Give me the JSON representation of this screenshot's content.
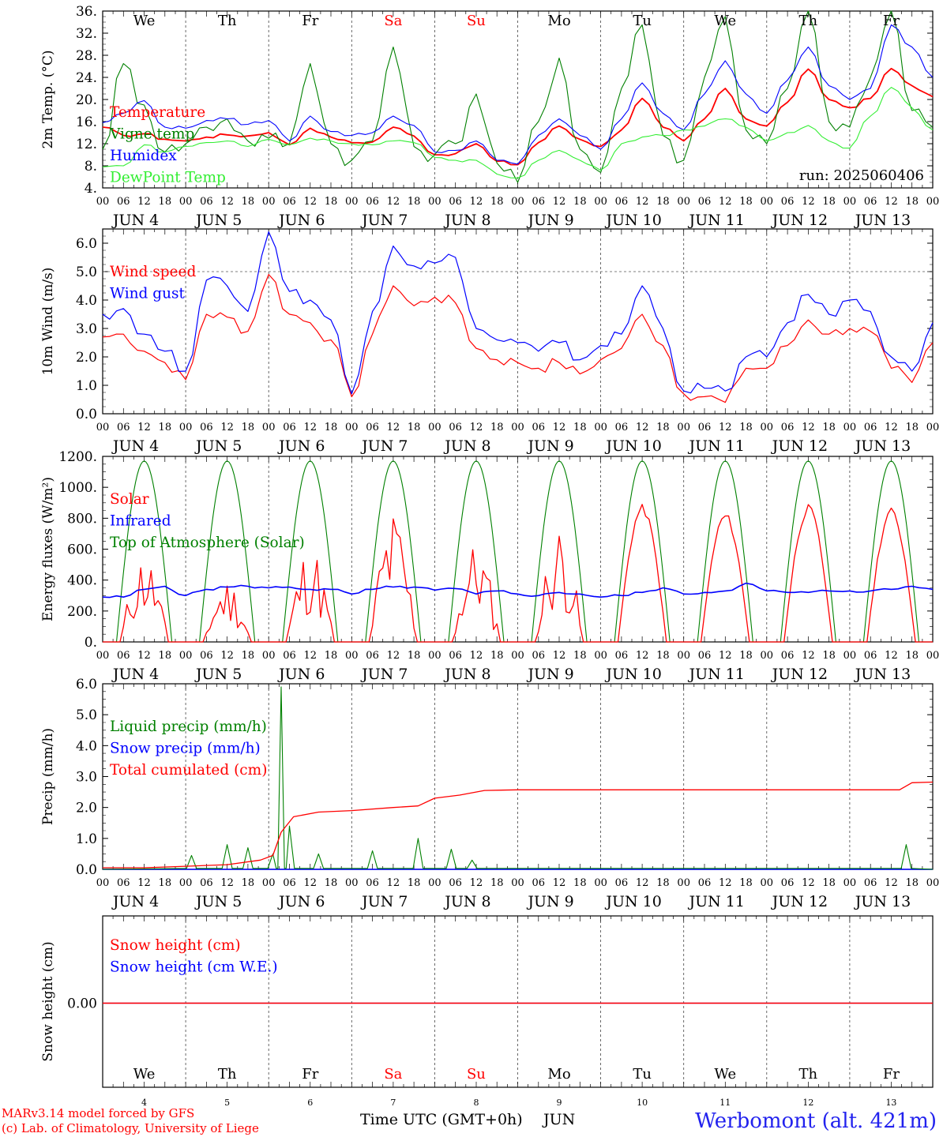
{
  "meteogram": {
    "run_label": "run: 2025060406",
    "location": "Werbomont (alt. 421m)",
    "credits": [
      "MARv3.14 model forced by GFS",
      "(c) Lab. of Climatology, University of Liege"
    ],
    "xaxis_title": "Time UTC (GMT+0h)",
    "month_label": "JUN",
    "days": [
      {
        "date": "JUN  4",
        "num": "4",
        "weekday": "We",
        "weekend": false
      },
      {
        "date": "JUN  5",
        "num": "5",
        "weekday": "Th",
        "weekend": false
      },
      {
        "date": "JUN  6",
        "num": "6",
        "weekday": "Fr",
        "weekend": false
      },
      {
        "date": "JUN  7",
        "num": "7",
        "weekday": "Sa",
        "weekend": true
      },
      {
        "date": "JUN  8",
        "num": "8",
        "weekday": "Su",
        "weekend": true
      },
      {
        "date": "JUN  9",
        "num": "9",
        "weekday": "Mo",
        "weekend": false
      },
      {
        "date": "JUN 10",
        "num": "10",
        "weekday": "Tu",
        "weekend": false
      },
      {
        "date": "JUN 11",
        "num": "11",
        "weekday": "We",
        "weekend": false
      },
      {
        "date": "JUN 12",
        "num": "12",
        "weekday": "Th",
        "weekend": false
      },
      {
        "date": "JUN 13",
        "num": "13",
        "weekday": "Fr",
        "weekend": false
      }
    ],
    "hour_ticks": [
      "00",
      "06",
      "12",
      "18"
    ],
    "last_hour_tick": "00"
  },
  "colors": {
    "red": "#ff0000",
    "blue": "#0000ff",
    "green": "#008000",
    "lightgreen": "#33ee33",
    "credit": "#ff0000",
    "location": "#2222ee"
  },
  "chart_data": [
    {
      "type": "line",
      "id": "temperature",
      "ylabel": "2m Temp. (°C)",
      "ylim": [
        4,
        36
      ],
      "yticks": [
        "36.",
        "32.",
        "28.",
        "24.",
        "20.",
        "16.",
        "12.",
        "8.",
        "4."
      ],
      "x_unit": "day offset from JUN 4 00 UTC (step 0.25 = 6h)",
      "x": [
        0,
        0.25,
        0.5,
        0.75,
        1,
        1.25,
        1.5,
        1.75,
        2,
        2.25,
        2.5,
        2.75,
        3,
        3.25,
        3.5,
        3.75,
        4,
        4.25,
        4.5,
        4.75,
        5,
        5.25,
        5.5,
        5.75,
        6,
        6.25,
        6.5,
        6.75,
        7,
        7.25,
        7.5,
        7.75,
        8,
        8.25,
        8.5,
        8.75,
        9,
        9.25,
        9.5,
        9.75,
        10
      ],
      "series": [
        {
          "name": "Temperature",
          "color": "#ff0000",
          "values": [
            15,
            13.5,
            13.8,
            12.8,
            12.5,
            13.2,
            13.6,
            13.4,
            14,
            11.8,
            14.8,
            13.2,
            12.2,
            12.3,
            15,
            13.4,
            10,
            10.2,
            12,
            8.8,
            8.2,
            12.2,
            15.2,
            12.8,
            11.5,
            14.5,
            20.2,
            15,
            12.5,
            16.5,
            22,
            16.5,
            15.2,
            19.5,
            25.5,
            20,
            18.5,
            20.2,
            25.6,
            22.5,
            20.5
          ]
        },
        {
          "name": "Vigne temp",
          "color": "#008000",
          "values": [
            11,
            26.5,
            19,
            10.5,
            12,
            15,
            16.5,
            12.5,
            13,
            12,
            26.5,
            12,
            9,
            12.5,
            29.5,
            11.5,
            10,
            12,
            21,
            8.5,
            5,
            16,
            27.5,
            11,
            6.8,
            22,
            33.5,
            13.5,
            9,
            24,
            35,
            14.5,
            12,
            22,
            36,
            16,
            15,
            24,
            36,
            18,
            15
          ]
        },
        {
          "name": "Humidex",
          "color": "#0000ff",
          "values": [
            15.8,
            17.5,
            19.8,
            15,
            14.8,
            16.2,
            16.5,
            15.5,
            16.2,
            12.5,
            17,
            14.2,
            13.5,
            14,
            17,
            15.3,
            10.5,
            10.8,
            12.5,
            9,
            8.3,
            13.5,
            16.5,
            13.5,
            11,
            16.5,
            23,
            17.5,
            14.5,
            21,
            27,
            21,
            17.5,
            23.5,
            29.5,
            22.5,
            20,
            22,
            33.5,
            29.5,
            24
          ]
        },
        {
          "name": "DewPoint Temp",
          "color": "#33ee33",
          "values": [
            7.8,
            8,
            11.8,
            10.5,
            11.5,
            12.2,
            12.5,
            11.5,
            12.8,
            11.8,
            13,
            12.5,
            12,
            11.8,
            12.5,
            12.2,
            9.5,
            9,
            9,
            6.5,
            5.8,
            9,
            10.8,
            9,
            7.2,
            12,
            13.2,
            13.5,
            14.5,
            15.2,
            16.5,
            15,
            12.5,
            14,
            15.3,
            12.5,
            11.2,
            17,
            22.2,
            18.5,
            14.5
          ]
        }
      ]
    },
    {
      "type": "line",
      "id": "wind",
      "ylabel": "10m Wind (m/s)",
      "ylim": [
        0,
        6.5
      ],
      "yticks": [
        "6.0",
        "5.0",
        "4.0",
        "3.0",
        "2.0",
        "1.0",
        "0.0"
      ],
      "reference_line": 5.0,
      "x_unit": "day offset from JUN 4 00 UTC (step 0.25 = 6h)",
      "x": [
        0,
        0.25,
        0.5,
        0.75,
        1,
        1.25,
        1.5,
        1.75,
        2,
        2.25,
        2.5,
        2.75,
        3,
        3.25,
        3.5,
        3.75,
        4,
        4.25,
        4.5,
        4.75,
        5,
        5.25,
        5.5,
        5.75,
        6,
        6.25,
        6.5,
        6.75,
        7,
        7.25,
        7.5,
        7.75,
        8,
        8.25,
        8.5,
        8.75,
        9,
        9.25,
        9.5,
        9.75,
        10
      ],
      "series": [
        {
          "name": "Wind speed",
          "color": "#ff0000",
          "values": [
            2.7,
            2.8,
            2.2,
            1.8,
            1.2,
            3.5,
            3.4,
            2.9,
            4.9,
            3.5,
            3.2,
            2.6,
            0.6,
            2.8,
            4.5,
            3.8,
            4.1,
            3.9,
            2.3,
            1.9,
            1.8,
            1.6,
            1.8,
            1.4,
            1.9,
            2.3,
            3.5,
            2.4,
            0.7,
            0.6,
            0.4,
            1.6,
            1.6,
            2.4,
            3.3,
            2.8,
            3.0,
            2.9,
            1.6,
            1.1,
            2.5
          ]
        },
        {
          "name": "Wind gust",
          "color": "#0000ff",
          "values": [
            3.5,
            3.7,
            2.8,
            2.2,
            1.5,
            4.7,
            4.5,
            3.6,
            6.4,
            4.3,
            4.0,
            3.3,
            0.7,
            3.6,
            5.9,
            5.2,
            5.3,
            5.5,
            3.0,
            2.6,
            2.5,
            2.2,
            2.5,
            1.9,
            2.4,
            2.8,
            4.5,
            3.0,
            0.8,
            0.9,
            0.8,
            2.0,
            2.0,
            3.2,
            4.2,
            3.5,
            4.0,
            3.6,
            2.0,
            1.5,
            3.2
          ]
        }
      ]
    },
    {
      "type": "line",
      "id": "energy",
      "ylabel": "Energy fluxes (W/m²)",
      "ylim": [
        0,
        1200
      ],
      "yticks": [
        "1200.",
        "1000.",
        "800.",
        "600.",
        "400.",
        "200.",
        "0."
      ],
      "x_unit": "day offset from JUN 4 00 UTC",
      "series": [
        {
          "name": "Solar",
          "color": "#ff0000",
          "daily_peaks": [
            600,
            420,
            650,
            870,
            670,
            780,
            890,
            840,
            890,
            870
          ]
        },
        {
          "name": "Infrared",
          "color": "#0000ff",
          "values": [
            290,
            290,
            340,
            360,
            300,
            340,
            355,
            360,
            350,
            355,
            340,
            340,
            310,
            340,
            355,
            355,
            335,
            345,
            310,
            330,
            310,
            300,
            320,
            310,
            290,
            300,
            320,
            350,
            310,
            320,
            330,
            380,
            330,
            320,
            320,
            330,
            330,
            330,
            340,
            360,
            340
          ]
        },
        {
          "name": "Top of Atmosphere (Solar)",
          "color": "#008000",
          "daily_peak": 1170,
          "sunrise_hour": 4,
          "sunset_hour": 20
        }
      ]
    },
    {
      "type": "line",
      "id": "precip",
      "ylabel": "Precip (mm/h)",
      "ylim": [
        0,
        6
      ],
      "yticks": [
        "6.0",
        "5.0",
        "4.0",
        "3.0",
        "2.0",
        "1.0",
        "0.0"
      ],
      "x_unit": "day offset from JUN 4 00 UTC",
      "series": [
        {
          "name": "Liquid precip (mm/h)",
          "color": "#008000",
          "spikes": [
            [
              1.07,
              0.45
            ],
            [
              1.5,
              0.8
            ],
            [
              1.75,
              0.7
            ],
            [
              2.05,
              0.5
            ],
            [
              2.15,
              5.9
            ],
            [
              2.25,
              1.4
            ],
            [
              2.6,
              0.5
            ],
            [
              3.25,
              0.6
            ],
            [
              3.8,
              1.0
            ],
            [
              4.2,
              0.65
            ],
            [
              4.45,
              0.3
            ],
            [
              9.68,
              0.8
            ]
          ]
        },
        {
          "name": "Snow precip (mm/h)",
          "color": "#0000ff",
          "constant": 0
        },
        {
          "name": "Total cumulated (cm)",
          "color": "#ff0000",
          "x": [
            0,
            0.5,
            1,
            1.5,
            1.9,
            2.05,
            2.15,
            2.3,
            2.6,
            3,
            3.5,
            3.8,
            4,
            4.3,
            4.6,
            5,
            6,
            7,
            8,
            9,
            9.6,
            9.75,
            10
          ],
          "values": [
            0.05,
            0.05,
            0.1,
            0.15,
            0.3,
            0.45,
            1.2,
            1.7,
            1.85,
            1.9,
            2.0,
            2.05,
            2.3,
            2.4,
            2.55,
            2.57,
            2.57,
            2.57,
            2.57,
            2.57,
            2.57,
            2.8,
            2.82
          ]
        }
      ]
    },
    {
      "type": "line",
      "id": "snow",
      "ylabel": "Snow height (cm)",
      "yticks": [
        "0.00"
      ],
      "series": [
        {
          "name": "Snow height (cm)",
          "color": "#ff0000",
          "constant": 0
        },
        {
          "name": "Snow height (cm W.E.)",
          "color": "#0000ff",
          "constant": 0
        }
      ]
    }
  ]
}
